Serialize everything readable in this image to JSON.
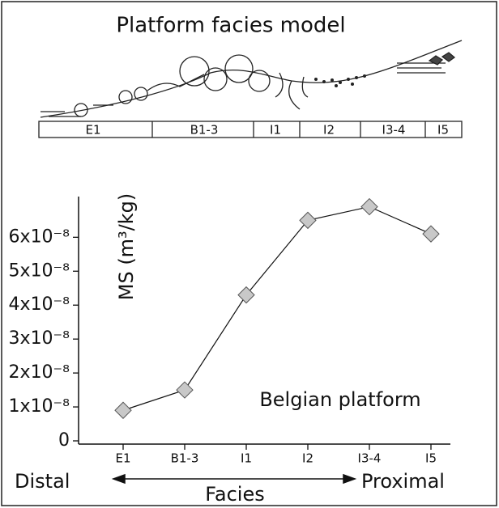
{
  "diagram": {
    "title": "Platform facies model",
    "zones": [
      "E1",
      "B1-3",
      "I1",
      "I2",
      "I3-4",
      "I5"
    ]
  },
  "chart_data": {
    "type": "line",
    "categories": [
      "E1",
      "B1-3",
      "I1",
      "I2",
      "I3-4",
      "I5"
    ],
    "values": [
      9e-09,
      1.5e-08,
      4.3e-08,
      6.5e-08,
      6.9e-08,
      6.1e-08
    ],
    "color": "#c8c8c8",
    "ylim": [
      0,
      7.2e-08
    ],
    "yticks": [
      0,
      {
        "value": 1e-08,
        "label": "1x10⁻⁸"
      },
      {
        "value": 2e-08,
        "label": "2x10⁻⁸"
      },
      {
        "value": 3e-08,
        "label": "3x10⁻⁸"
      },
      {
        "value": 4e-08,
        "label": "4x10⁻⁸"
      },
      {
        "value": 5e-08,
        "label": "5x10⁻⁸"
      },
      {
        "value": 6e-08,
        "label": "6x10⁻⁸"
      }
    ],
    "ylabel": "MS (m³/kg)",
    "xlabel": "Facies",
    "x_left_label": "Distal",
    "x_right_label": "Proximal",
    "annotation": "Belgian platform"
  }
}
